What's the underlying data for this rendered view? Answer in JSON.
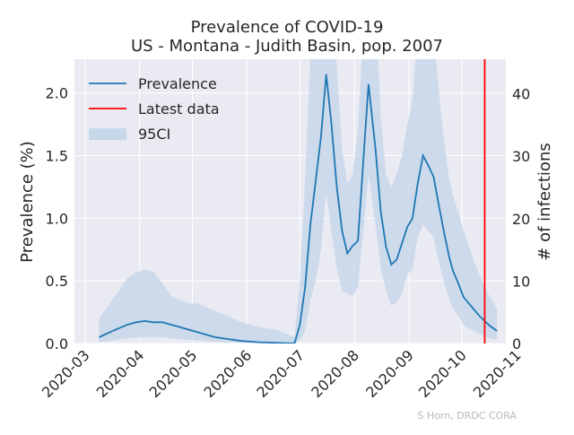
{
  "chart_data": {
    "type": "line",
    "title": "Prevalence of COVID-19",
    "subtitle": "US - Montana - Judith Basin, pop. 2007",
    "ylabel": "Prevalence (%)",
    "ylabel_right": "# of infections",
    "credit": "S Horn, DRDC CORA",
    "xlim": [
      "2020-02-24",
      "2020-10-26"
    ],
    "ylim": [
      0,
      2.27
    ],
    "ylim_right": [
      0,
      45.55
    ],
    "x_ticks": [
      "2020-03",
      "2020-04",
      "2020-05",
      "2020-06",
      "2020-07",
      "2020-08",
      "2020-09",
      "2020-10",
      "2020-11"
    ],
    "y_ticks": [
      "0.0",
      "0.5",
      "1.0",
      "1.5",
      "2.0"
    ],
    "y_ticks_right": [
      "0",
      "10",
      "20",
      "30",
      "40"
    ],
    "grid": true,
    "legend_placement": "top-left",
    "latest_data_date": "2020-10-14",
    "series": [
      {
        "name": "Prevalence",
        "color": "#1f77b4",
        "x": [
          "2020-03-09",
          "2020-03-15",
          "2020-03-20",
          "2020-03-25",
          "2020-03-30",
          "2020-04-04",
          "2020-04-09",
          "2020-04-14",
          "2020-04-19",
          "2020-04-24",
          "2020-04-29",
          "2020-05-04",
          "2020-05-09",
          "2020-05-14",
          "2020-05-19",
          "2020-05-24",
          "2020-05-29",
          "2020-06-03",
          "2020-06-08",
          "2020-06-13",
          "2020-06-18",
          "2020-06-23",
          "2020-06-28",
          "2020-07-01",
          "2020-07-04",
          "2020-07-07",
          "2020-07-10",
          "2020-07-13",
          "2020-07-16",
          "2020-07-19",
          "2020-07-22",
          "2020-07-25",
          "2020-07-28",
          "2020-07-31",
          "2020-08-03",
          "2020-08-06",
          "2020-08-09",
          "2020-08-13",
          "2020-08-16",
          "2020-08-19",
          "2020-08-22",
          "2020-08-25",
          "2020-08-28",
          "2020-08-31",
          "2020-09-03",
          "2020-09-06",
          "2020-09-09",
          "2020-09-12",
          "2020-09-15",
          "2020-09-18",
          "2020-09-21",
          "2020-09-24",
          "2020-09-26",
          "2020-09-29",
          "2020-10-02",
          "2020-10-05",
          "2020-10-08",
          "2020-10-11",
          "2020-10-14",
          "2020-10-17",
          "2020-10-21"
        ],
        "values": [
          0.05,
          0.09,
          0.12,
          0.15,
          0.17,
          0.18,
          0.17,
          0.17,
          0.15,
          0.13,
          0.11,
          0.09,
          0.07,
          0.05,
          0.04,
          0.03,
          0.02,
          0.015,
          0.01,
          0.008,
          0.005,
          0.003,
          0.001,
          0.15,
          0.45,
          0.95,
          1.3,
          1.65,
          2.15,
          1.75,
          1.25,
          0.9,
          0.72,
          0.78,
          0.82,
          1.45,
          2.07,
          1.55,
          1.05,
          0.77,
          0.63,
          0.67,
          0.8,
          0.93,
          1.0,
          1.28,
          1.5,
          1.42,
          1.33,
          1.1,
          0.88,
          0.68,
          0.58,
          0.48,
          0.37,
          0.32,
          0.27,
          0.22,
          0.18,
          0.14,
          0.1
        ]
      }
    ],
    "ci_band": {
      "name": "95CI",
      "color": "#c7d7ea",
      "x": [
        "2020-03-09",
        "2020-03-15",
        "2020-03-20",
        "2020-03-25",
        "2020-03-30",
        "2020-04-04",
        "2020-04-09",
        "2020-04-14",
        "2020-04-19",
        "2020-04-24",
        "2020-04-29",
        "2020-05-04",
        "2020-05-09",
        "2020-05-14",
        "2020-05-19",
        "2020-05-24",
        "2020-05-29",
        "2020-06-03",
        "2020-06-08",
        "2020-06-13",
        "2020-06-18",
        "2020-06-23",
        "2020-06-28",
        "2020-07-01",
        "2020-07-04",
        "2020-07-07",
        "2020-07-10",
        "2020-07-13",
        "2020-07-16",
        "2020-07-19",
        "2020-07-22",
        "2020-07-25",
        "2020-07-28",
        "2020-07-31",
        "2020-08-03",
        "2020-08-06",
        "2020-08-09",
        "2020-08-13",
        "2020-08-16",
        "2020-08-19",
        "2020-08-22",
        "2020-08-25",
        "2020-08-28",
        "2020-08-31",
        "2020-09-03",
        "2020-09-06",
        "2020-09-09",
        "2020-09-12",
        "2020-09-15",
        "2020-09-18",
        "2020-09-21",
        "2020-09-24",
        "2020-09-26",
        "2020-09-29",
        "2020-10-02",
        "2020-10-05",
        "2020-10-08",
        "2020-10-11",
        "2020-10-14",
        "2020-10-17",
        "2020-10-21"
      ],
      "lower": [
        0.01,
        0.02,
        0.03,
        0.04,
        0.05,
        0.05,
        0.05,
        0.05,
        0.04,
        0.035,
        0.03,
        0.025,
        0.02,
        0.015,
        0.01,
        0.008,
        0.006,
        0.004,
        0.003,
        0.002,
        0.001,
        0.001,
        0.0,
        0.02,
        0.1,
        0.35,
        0.5,
        0.75,
        1.2,
        0.9,
        0.6,
        0.42,
        0.4,
        0.38,
        0.45,
        0.9,
        1.35,
        0.95,
        0.6,
        0.42,
        0.3,
        0.33,
        0.4,
        0.55,
        0.6,
        0.85,
        0.95,
        0.9,
        0.85,
        0.65,
        0.48,
        0.35,
        0.28,
        0.22,
        0.15,
        0.12,
        0.1,
        0.08,
        0.06,
        0.04,
        0.03
      ],
      "upper": [
        0.2,
        0.32,
        0.42,
        0.52,
        0.57,
        0.59,
        0.57,
        0.48,
        0.38,
        0.35,
        0.32,
        0.32,
        0.29,
        0.26,
        0.23,
        0.2,
        0.17,
        0.15,
        0.13,
        0.12,
        0.11,
        0.08,
        0.05,
        0.5,
        1.3,
        2.3,
        2.8,
        3.1,
        3.6,
        3.0,
        2.2,
        1.55,
        1.28,
        1.35,
        1.7,
        2.5,
        3.3,
        2.7,
        1.8,
        1.35,
        1.25,
        1.35,
        1.5,
        1.75,
        1.95,
        2.5,
        2.9,
        2.75,
        2.5,
        2.0,
        1.6,
        1.3,
        1.18,
        1.05,
        0.9,
        0.78,
        0.65,
        0.55,
        0.45,
        0.37,
        0.28
      ]
    }
  },
  "legend": {
    "prevalence": "Prevalence",
    "latest": "Latest data",
    "ci": "95CI"
  }
}
